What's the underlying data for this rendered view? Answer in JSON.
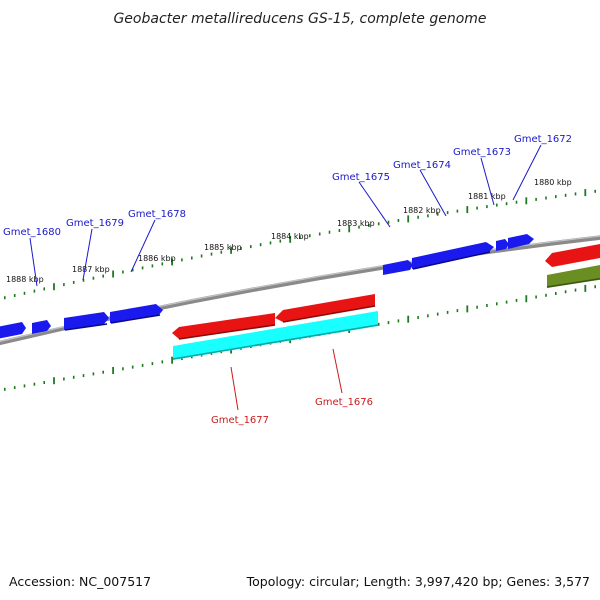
{
  "title": "Geobacter metallireducens GS-15, complete genome",
  "footer": {
    "accession": "Accession: NC_007517",
    "summary": "Topology: circular; Length: 3,997,420 bp; Genes: 3,577"
  },
  "colors": {
    "forward_gene": "#1a1aee",
    "reverse_gene": "#e81414",
    "reverse_gene_cyan": "#19ffff",
    "other_gene": "#6b8e23",
    "backbone": "#8a8a8a",
    "tick": "#1e7a1e",
    "forward_label": "#1a1acc",
    "reverse_label": "#cc1a1a"
  },
  "ticks": [
    "1888 kbp",
    "1887 kbp",
    "1886 kbp",
    "1885 kbp",
    "1884 kbp",
    "1883 kbp",
    "1882 kbp",
    "1881 kbp",
    "1880 kbp"
  ],
  "genes_forward": [
    "Gmet_1680",
    "Gmet_1679",
    "Gmet_1678",
    "Gmet_1675",
    "Gmet_1674",
    "Gmet_1673",
    "Gmet_1672"
  ],
  "genes_reverse": [
    "Gmet_1677",
    "Gmet_1676"
  ]
}
